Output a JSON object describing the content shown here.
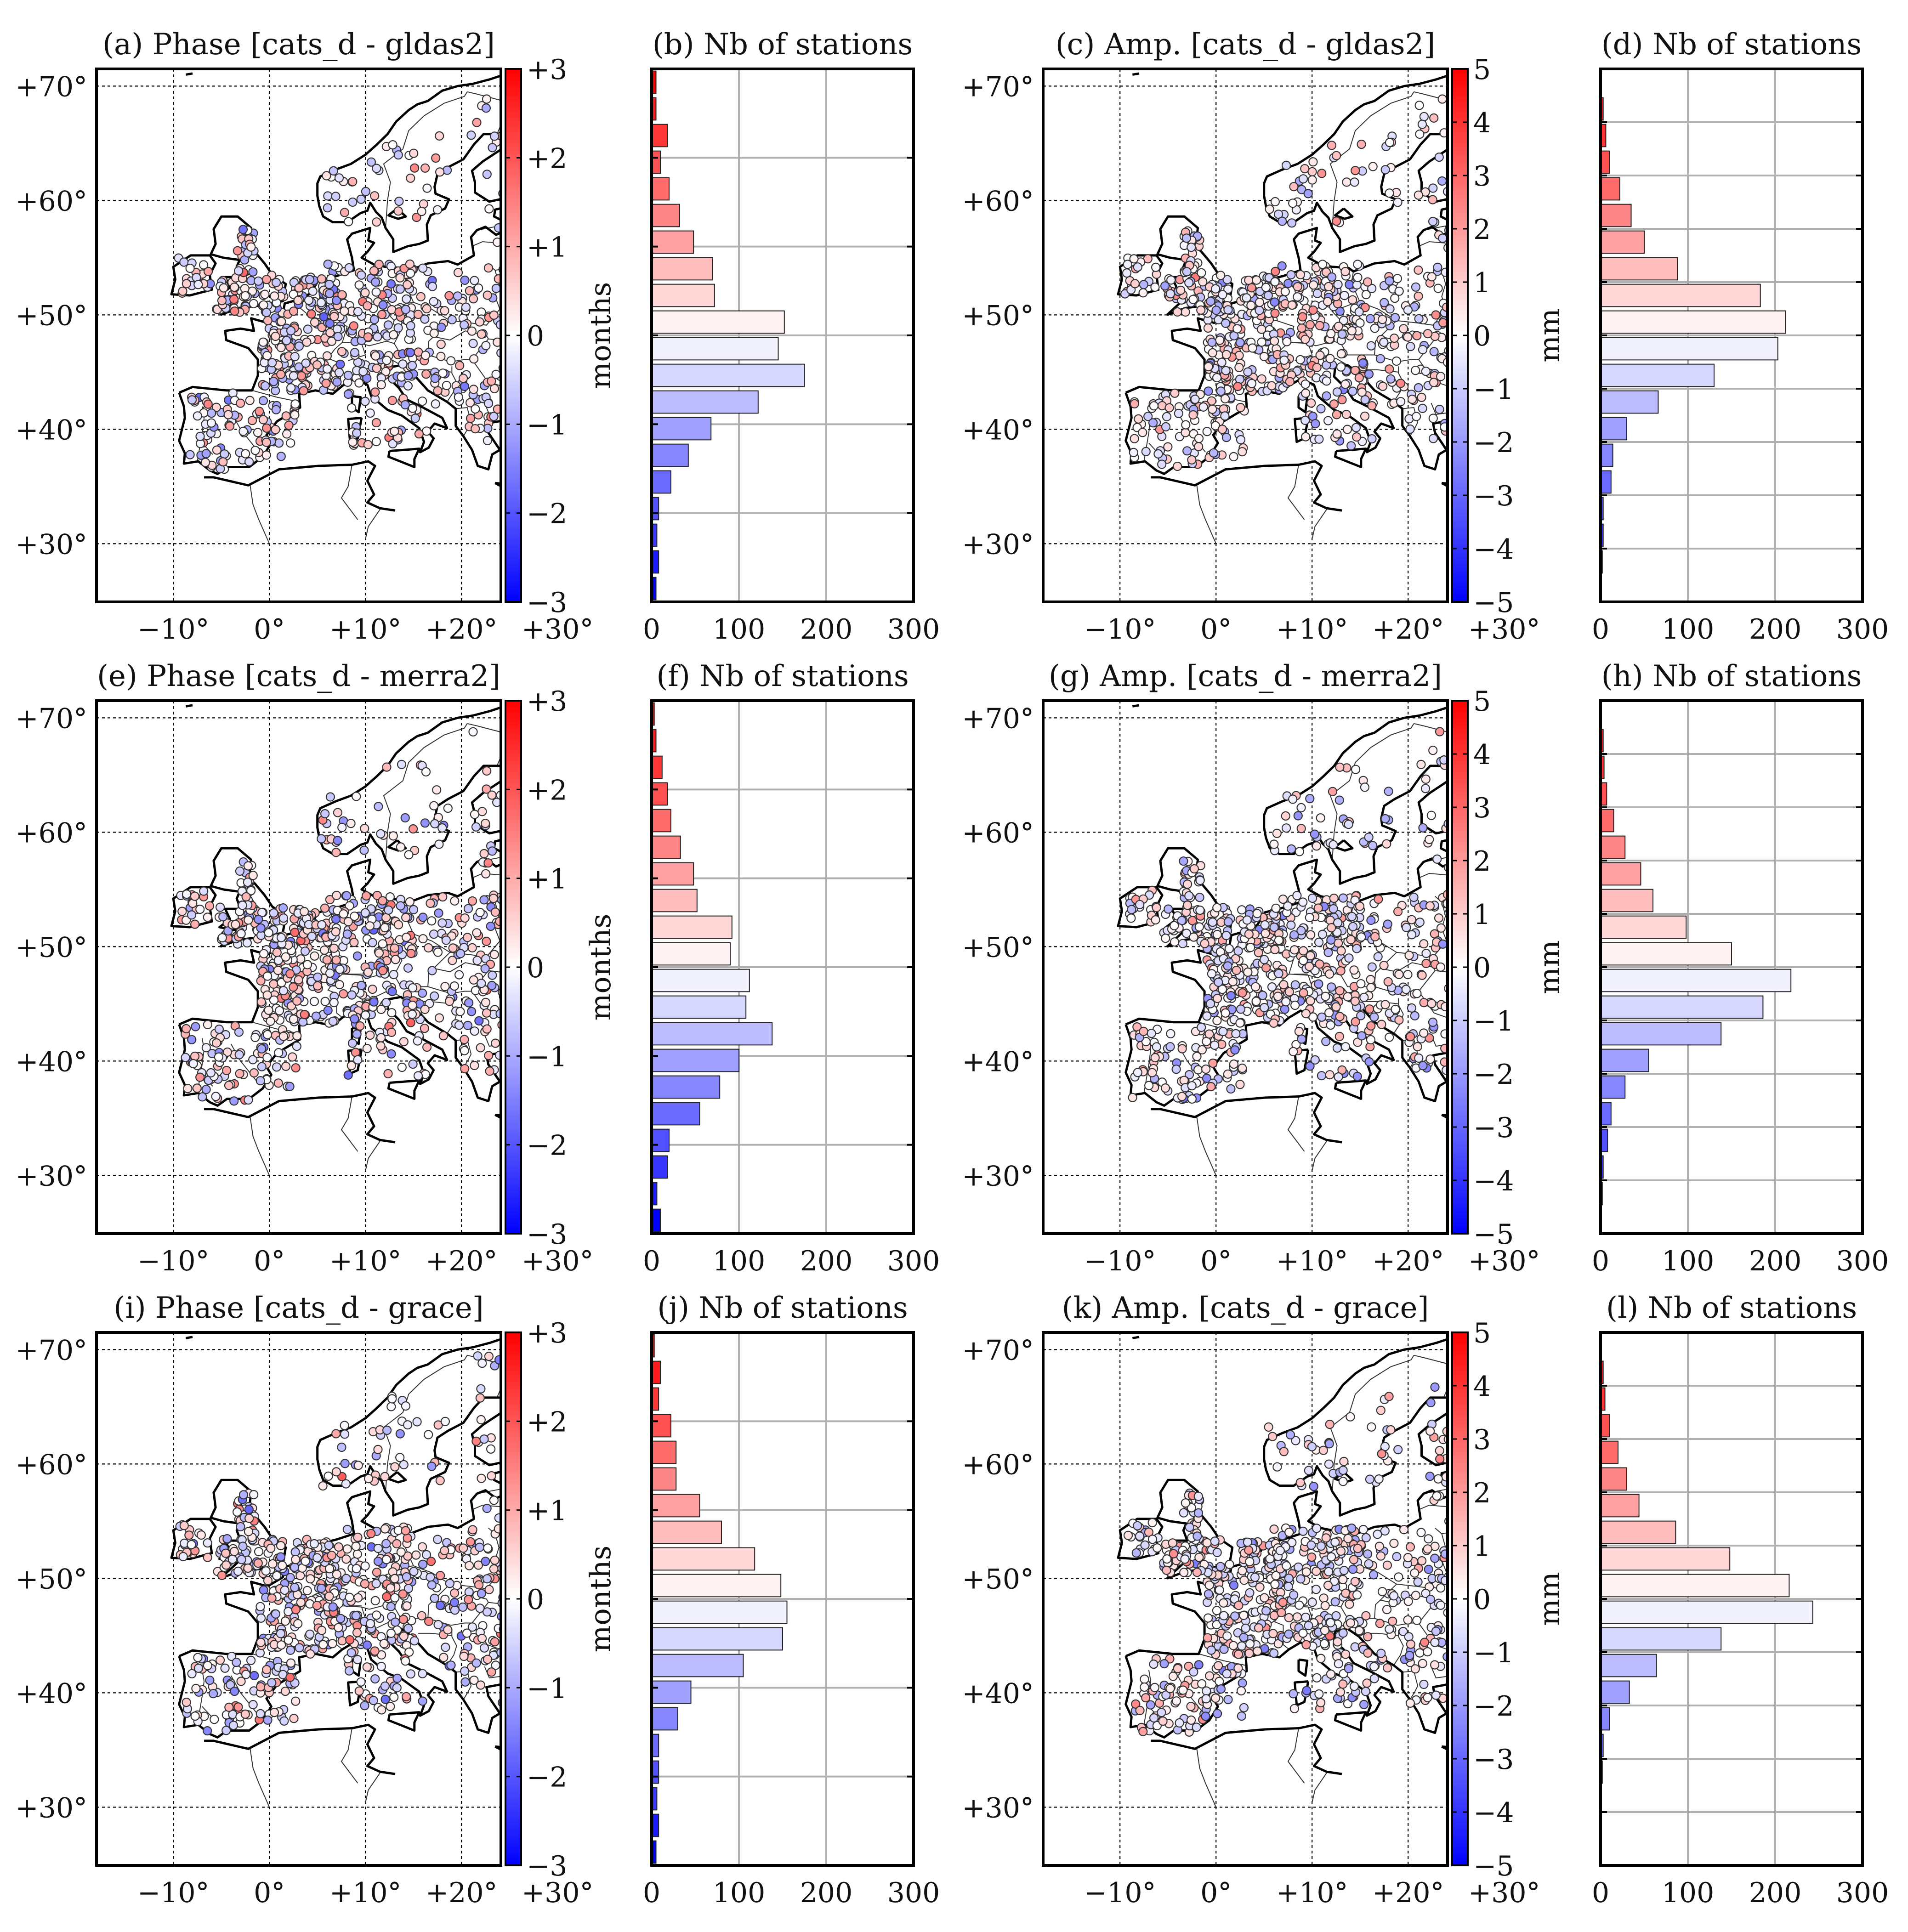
{
  "panels": [
    {
      "id": "a",
      "title": "(a) Phase [cats_d - gldas2]",
      "kind": "map",
      "quantity": "phase"
    },
    {
      "id": "b",
      "title": "(b) Nb of stations",
      "kind": "hist",
      "quantity": "phase",
      "ylabel": "months"
    },
    {
      "id": "c",
      "title": "(c) Amp. [cats_d - gldas2]",
      "kind": "map",
      "quantity": "amp"
    },
    {
      "id": "d",
      "title": "(d) Nb of stations",
      "kind": "hist",
      "quantity": "amp",
      "ylabel": "mm"
    },
    {
      "id": "e",
      "title": "(e) Phase [cats_d - merra2]",
      "kind": "map",
      "quantity": "phase"
    },
    {
      "id": "f",
      "title": "(f) Nb of stations",
      "kind": "hist",
      "quantity": "phase",
      "ylabel": "months"
    },
    {
      "id": "g",
      "title": "(g) Amp. [cats_d - merra2]",
      "kind": "map",
      "quantity": "amp"
    },
    {
      "id": "h",
      "title": "(h) Nb of stations",
      "kind": "hist",
      "quantity": "amp",
      "ylabel": "mm"
    },
    {
      "id": "i",
      "title": "(i) Phase [cats_d - grace]",
      "kind": "map",
      "quantity": "phase"
    },
    {
      "id": "j",
      "title": "(j) Nb of stations",
      "kind": "hist",
      "quantity": "phase",
      "ylabel": "months"
    },
    {
      "id": "k",
      "title": "(k) Amp. [cats_d - grace]",
      "kind": "map",
      "quantity": "amp"
    },
    {
      "id": "l",
      "title": "(l) Nb of stations",
      "kind": "hist",
      "quantity": "amp",
      "ylabel": "mm"
    }
  ],
  "map_axes": {
    "lat_ticks": [
      {
        "v": 30,
        "label": "+30°"
      },
      {
        "v": 40,
        "label": "+40°"
      },
      {
        "v": 50,
        "label": "+50°"
      },
      {
        "v": 60,
        "label": "+60°"
      },
      {
        "v": 70,
        "label": "+70°"
      }
    ],
    "lon_ticks": [
      {
        "v": -10,
        "label": "−10°"
      },
      {
        "v": 0,
        "label": "0°"
      },
      {
        "v": 10,
        "label": "+10°"
      },
      {
        "v": 20,
        "label": "+20°"
      },
      {
        "v": 30,
        "label": "+30°"
      }
    ]
  },
  "colorbars": {
    "phase": {
      "range": [
        -3,
        3
      ],
      "ticks": [
        {
          "v": 3,
          "label": "+3"
        },
        {
          "v": 2,
          "label": "+2"
        },
        {
          "v": 1,
          "label": "+1"
        },
        {
          "v": 0,
          "label": "0"
        },
        {
          "v": -1,
          "label": "−1"
        },
        {
          "v": -2,
          "label": "−2"
        },
        {
          "v": -3,
          "label": "−3"
        }
      ]
    },
    "amp": {
      "range": [
        -5,
        5
      ],
      "ticks": [
        {
          "v": 5,
          "label": "5"
        },
        {
          "v": 4,
          "label": "4"
        },
        {
          "v": 3,
          "label": "3"
        },
        {
          "v": 2,
          "label": "2"
        },
        {
          "v": 1,
          "label": "1"
        },
        {
          "v": 0,
          "label": "0"
        },
        {
          "v": -1,
          "label": "−1"
        },
        {
          "v": -2,
          "label": "−2"
        },
        {
          "v": -3,
          "label": "−3"
        },
        {
          "v": -4,
          "label": "−4"
        },
        {
          "v": -5,
          "label": "−5"
        }
      ]
    },
    "low_color": "#0000ff",
    "mid_color": "#ffffff",
    "high_color": "#ff0000"
  },
  "chart_data": [
    {
      "type": "bar",
      "panel": "b",
      "orientation": "horizontal",
      "ylabel": "months",
      "xlim": [
        0,
        300
      ],
      "x_ticks": [
        "0",
        "100",
        "200",
        "300"
      ],
      "bin_centers": [
        2.85,
        2.55,
        2.25,
        1.95,
        1.65,
        1.35,
        1.05,
        0.75,
        0.45,
        0.15,
        -0.15,
        -0.45,
        -0.75,
        -1.05,
        -1.35,
        -1.65,
        -1.95,
        -2.25,
        -2.55,
        -2.85
      ],
      "values": [
        5,
        5,
        18,
        10,
        20,
        32,
        48,
        70,
        72,
        152,
        145,
        175,
        122,
        68,
        42,
        22,
        8,
        6,
        8,
        5
      ]
    },
    {
      "type": "bar",
      "panel": "d",
      "orientation": "horizontal",
      "ylabel": "mm",
      "xlim": [
        0,
        300
      ],
      "x_ticks": [
        "0",
        "100",
        "200",
        "300"
      ],
      "bin_centers": [
        4.25,
        3.75,
        3.25,
        2.75,
        2.25,
        1.75,
        1.25,
        0.75,
        0.25,
        -0.25,
        -0.75,
        -1.25,
        -1.75,
        -2.25,
        -2.75,
        -3.25,
        -3.75,
        -4.25
      ],
      "values": [
        3,
        6,
        10,
        22,
        35,
        50,
        88,
        183,
        212,
        203,
        130,
        66,
        30,
        14,
        12,
        3,
        3,
        2
      ]
    },
    {
      "type": "bar",
      "panel": "f",
      "orientation": "horizontal",
      "ylabel": "months",
      "xlim": [
        0,
        300
      ],
      "x_ticks": [
        "0",
        "100",
        "200",
        "300"
      ],
      "bin_centers": [
        2.85,
        2.55,
        2.25,
        1.95,
        1.65,
        1.35,
        1.05,
        0.75,
        0.45,
        0.15,
        -0.15,
        -0.45,
        -0.75,
        -1.05,
        -1.35,
        -1.65,
        -1.95,
        -2.25,
        -2.55,
        -2.85
      ],
      "values": [
        3,
        5,
        12,
        18,
        22,
        33,
        48,
        52,
        92,
        90,
        112,
        108,
        138,
        100,
        78,
        55,
        20,
        18,
        6,
        10
      ]
    },
    {
      "type": "bar",
      "panel": "h",
      "orientation": "horizontal",
      "ylabel": "mm",
      "xlim": [
        0,
        300
      ],
      "x_ticks": [
        "0",
        "100",
        "200",
        "300"
      ],
      "bin_centers": [
        4.25,
        3.75,
        3.25,
        2.75,
        2.25,
        1.75,
        1.25,
        0.75,
        0.25,
        -0.25,
        -0.75,
        -1.25,
        -1.75,
        -2.25,
        -2.75,
        -3.25,
        -3.75,
        -4.25
      ],
      "values": [
        3,
        4,
        7,
        15,
        28,
        46,
        60,
        98,
        150,
        218,
        186,
        138,
        55,
        28,
        12,
        8,
        3,
        2
      ]
    },
    {
      "type": "bar",
      "panel": "j",
      "orientation": "horizontal",
      "ylabel": "months",
      "xlim": [
        0,
        300
      ],
      "x_ticks": [
        "0",
        "100",
        "200",
        "300"
      ],
      "bin_centers": [
        2.85,
        2.55,
        2.25,
        1.95,
        1.65,
        1.35,
        1.05,
        0.75,
        0.45,
        0.15,
        -0.15,
        -0.45,
        -0.75,
        -1.05,
        -1.35,
        -1.65,
        -1.95,
        -2.25,
        -2.55,
        -2.85
      ],
      "values": [
        3,
        10,
        8,
        22,
        28,
        28,
        55,
        80,
        118,
        148,
        155,
        150,
        105,
        45,
        30,
        8,
        8,
        6,
        8,
        5
      ]
    },
    {
      "type": "bar",
      "panel": "l",
      "orientation": "horizontal",
      "ylabel": "mm",
      "xlim": [
        0,
        300
      ],
      "x_ticks": [
        "0",
        "100",
        "200",
        "300"
      ],
      "bin_centers": [
        4.25,
        3.75,
        3.25,
        2.75,
        2.25,
        1.75,
        1.25,
        0.75,
        0.25,
        -0.25,
        -0.75,
        -1.25,
        -1.75,
        -2.25,
        -2.75,
        -3.25,
        -3.75,
        -4.25
      ],
      "values": [
        3,
        5,
        10,
        20,
        30,
        44,
        86,
        148,
        216,
        243,
        138,
        64,
        33,
        10,
        3,
        2,
        0,
        0
      ]
    }
  ]
}
